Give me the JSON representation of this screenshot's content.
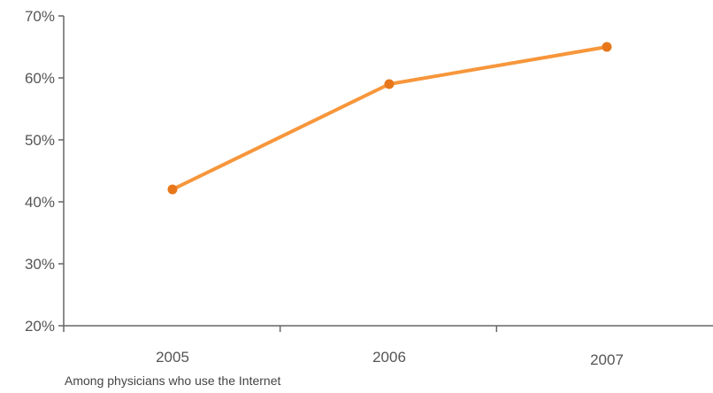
{
  "chart_data": {
    "type": "line",
    "categories": [
      "2005",
      "2006",
      "2007"
    ],
    "series": [
      {
        "values": [
          42,
          59,
          65
        ]
      }
    ],
    "ylim": [
      20,
      70
    ],
    "yticks": [
      20,
      30,
      40,
      50,
      60,
      70
    ],
    "y_tick_format": "{v}%",
    "grid": false,
    "colors": {
      "line": "#f7963b",
      "marker": "#e8771b",
      "axis": "#666666"
    }
  },
  "caption": "Among physicians who use the Internet"
}
